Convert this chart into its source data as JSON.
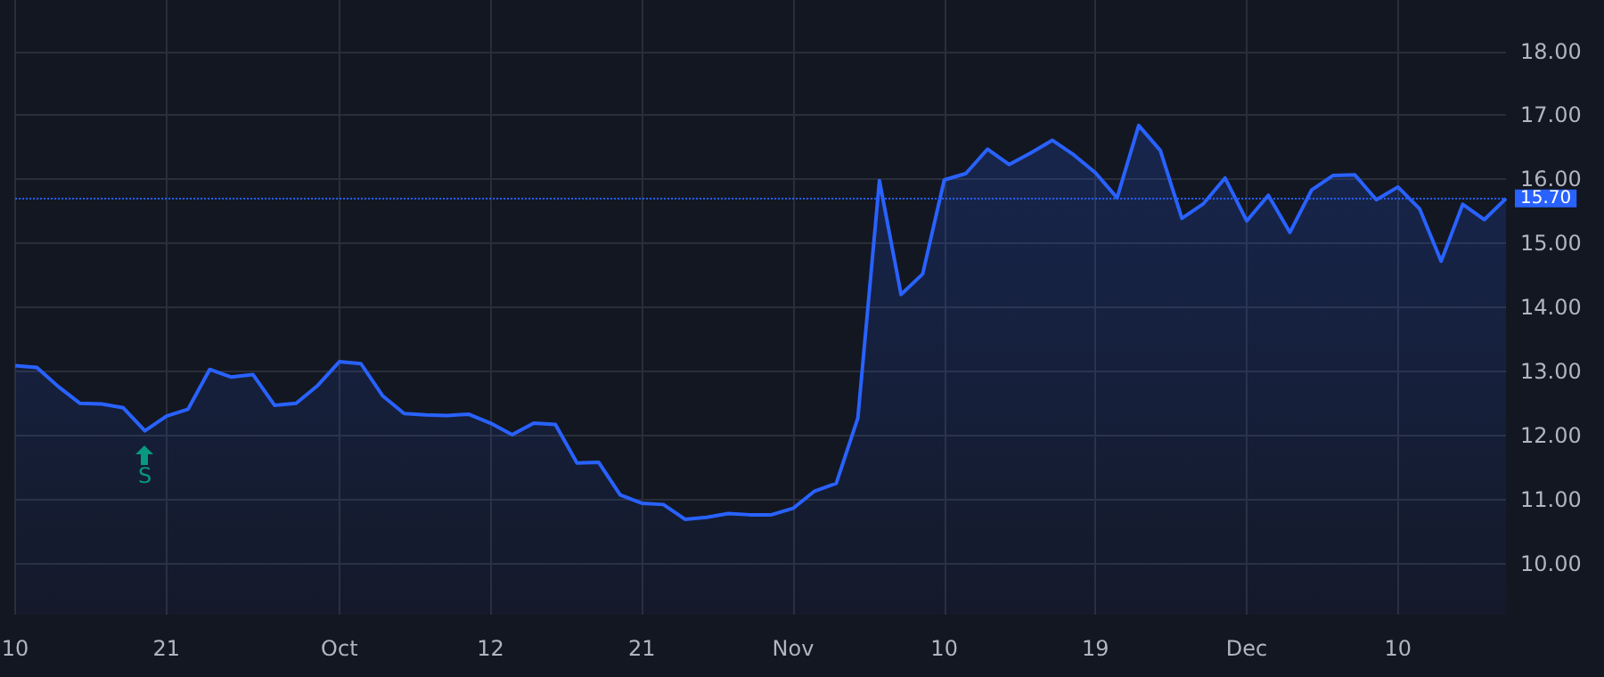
{
  "chart_data": {
    "type": "area",
    "categories": [
      "10",
      null,
      null,
      null,
      null,
      null,
      null,
      "21",
      null,
      null,
      null,
      null,
      null,
      null,
      null,
      "Oct",
      null,
      null,
      null,
      null,
      null,
      null,
      "12",
      null,
      null,
      null,
      null,
      null,
      null,
      "21",
      null,
      null,
      null,
      null,
      null,
      null,
      "Nov",
      null,
      null,
      null,
      null,
      null,
      null,
      "10",
      null,
      null,
      null,
      null,
      null,
      null,
      "19",
      null,
      null,
      null,
      null,
      null,
      null,
      "Dec",
      null,
      null,
      null,
      null,
      null,
      null,
      "10",
      null,
      null,
      null,
      null,
      null
    ],
    "series": [
      {
        "color": "#2962ff",
        "values": [
          13.09,
          13.06,
          12.76,
          12.5,
          12.49,
          12.43,
          12.07,
          12.3,
          12.41,
          13.03,
          12.91,
          12.95,
          12.47,
          12.5,
          12.78,
          13.15,
          13.12,
          12.62,
          12.34,
          12.32,
          12.31,
          12.33,
          12.19,
          12.01,
          12.19,
          12.17,
          11.57,
          11.58,
          11.07,
          10.94,
          10.92,
          10.69,
          10.72,
          10.78,
          10.76,
          10.76,
          10.86,
          11.13,
          11.25,
          12.27,
          15.98,
          14.2,
          14.52,
          15.99,
          16.09,
          16.47,
          16.23,
          16.41,
          16.61,
          16.38,
          16.1,
          15.71,
          16.84,
          16.45,
          15.39,
          15.62,
          16.02,
          15.35,
          15.75,
          15.17,
          15.83,
          16.06,
          16.07,
          15.68,
          15.88,
          15.54,
          14.72,
          15.61,
          15.37,
          15.7
        ]
      }
    ],
    "ylim": [
      9.2,
      18.8
    ],
    "yticks": [
      {
        "value": 10,
        "label": "10.00"
      },
      {
        "value": 11,
        "label": "11.00"
      },
      {
        "value": 12,
        "label": "12.00"
      },
      {
        "value": 13,
        "label": "13.00"
      },
      {
        "value": 14,
        "label": "14.00"
      },
      {
        "value": 15,
        "label": "15.00"
      },
      {
        "value": 16,
        "label": "16.00"
      },
      {
        "value": 17,
        "label": "17.00"
      },
      {
        "value": 18,
        "label": "18.00"
      }
    ],
    "ref_lines": [
      {
        "axis": "y",
        "value": 15.7,
        "label": "15.70",
        "color": "#2962ff",
        "line_style": "dotted"
      }
    ],
    "annotations": [
      {
        "text": "S",
        "y": 12.07
      }
    ],
    "grid": true,
    "marker": "none"
  }
}
